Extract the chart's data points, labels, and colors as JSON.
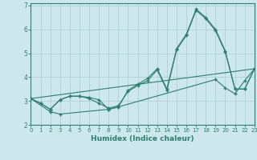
{
  "xlabel": "Humidex (Indice chaleur)",
  "bg_color": "#cce8ec",
  "grid_color": "#b0cfd4",
  "line_color": "#2e7d6e",
  "x_ticks": [
    0,
    1,
    2,
    3,
    4,
    5,
    6,
    7,
    8,
    9,
    10,
    11,
    12,
    13,
    14,
    15,
    16,
    17,
    18,
    19,
    20,
    21,
    22,
    23
  ],
  "y_ticks": [
    2,
    3,
    4,
    5,
    6,
    7
  ],
  "xlim": [
    0,
    23
  ],
  "ylim": [
    2.1,
    7.1
  ],
  "series1_x": [
    0,
    1,
    2,
    3,
    4,
    5,
    6,
    7,
    8,
    9,
    10,
    11,
    12,
    13,
    14,
    15,
    16,
    17,
    18,
    19,
    20,
    21,
    22,
    23
  ],
  "series1_y": [
    3.1,
    2.9,
    2.65,
    3.05,
    3.2,
    3.2,
    3.15,
    3.05,
    2.65,
    2.75,
    3.45,
    3.7,
    3.95,
    4.35,
    3.5,
    5.2,
    5.8,
    6.85,
    6.5,
    6.0,
    5.1,
    3.5,
    3.5,
    4.35
  ],
  "series2_x": [
    0,
    1,
    2,
    3,
    4,
    5,
    6,
    7,
    8,
    9,
    10,
    11,
    12,
    13,
    14,
    15,
    16,
    17,
    18,
    19,
    20,
    21,
    22,
    23
  ],
  "series2_y": [
    3.1,
    2.9,
    2.65,
    3.05,
    3.2,
    3.2,
    3.1,
    2.9,
    2.7,
    2.8,
    3.4,
    3.65,
    3.85,
    4.3,
    3.45,
    5.15,
    5.75,
    6.8,
    6.45,
    5.95,
    5.05,
    3.5,
    3.5,
    4.35
  ],
  "series3_x": [
    0,
    23
  ],
  "series3_y": [
    3.1,
    4.35
  ],
  "series4_x": [
    0,
    2,
    3,
    8,
    9,
    19,
    20,
    21,
    22,
    23
  ],
  "series4_y": [
    3.1,
    2.55,
    2.45,
    2.65,
    2.75,
    3.9,
    3.55,
    3.3,
    3.85,
    4.35
  ]
}
